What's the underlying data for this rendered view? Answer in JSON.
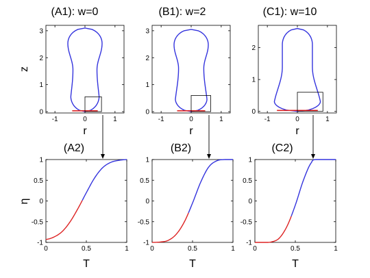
{
  "colors": {
    "blue": "#3333dd",
    "red": "#dd2222",
    "axis": "#000000",
    "box": "#000000"
  },
  "chart_data": [
    {
      "id": "A1",
      "type": "line",
      "title": "(A1): w=0",
      "xlabel": "r",
      "ylabel": "z",
      "xlim": [
        -1.3,
        1.3
      ],
      "ylim": [
        -0.05,
        3.2
      ],
      "xticks": [
        -1,
        0,
        1
      ],
      "yticks": [
        0,
        1,
        2,
        3
      ],
      "shape": {
        "half_width": 0.57,
        "bottom_half_width": 0.5,
        "height": 3.1,
        "waist_half_width": 0.4,
        "waist_z": 1.55,
        "bottom_round": 0.55,
        "top_round": 0.57
      },
      "inset_box": {
        "r": [
          0,
          0.55
        ],
        "z": [
          0,
          0.55
        ]
      },
      "callout": "(A2)"
    },
    {
      "id": "B1",
      "type": "line",
      "title": "(B1): w=2",
      "xlabel": "r",
      "ylabel": "",
      "xlim": [
        -1.3,
        1.3
      ],
      "ylim": [
        -0.05,
        3.2
      ],
      "xticks": [
        -1,
        0,
        1
      ],
      "yticks": [
        0,
        1,
        2,
        3
      ],
      "shape": {
        "half_width": 0.57,
        "bottom_half_width": 0.55,
        "height": 3.05,
        "waist_half_width": 0.42,
        "waist_z": 1.6,
        "bottom_round": 0.45,
        "top_round": 0.57
      },
      "inset_box": {
        "r": [
          0,
          0.65
        ],
        "z": [
          0,
          0.6
        ]
      },
      "callout": "(B2)"
    },
    {
      "id": "C1",
      "type": "line",
      "title": "(C1): w=10",
      "xlabel": "r",
      "ylabel": "",
      "xlim": [
        -1.3,
        1.3
      ],
      "ylim": [
        -0.05,
        2.7
      ],
      "xticks": [
        -1,
        0,
        1
      ],
      "yticks": [
        0,
        1,
        2
      ],
      "shape": {
        "half_width": 0.5,
        "bottom_half_width": 0.8,
        "height": 2.6,
        "waist_half_width": 0.5,
        "waist_z": 1.4,
        "bottom_round": 0.3,
        "top_round": 0.5
      },
      "inset_box": {
        "r": [
          0,
          0.85
        ],
        "z": [
          0,
          0.6
        ]
      },
      "callout": "(C2)"
    },
    {
      "id": "A2",
      "type": "line",
      "title": "",
      "xlabel": "T",
      "ylabel": "η",
      "xlim": [
        0,
        1
      ],
      "ylim": [
        -1,
        1
      ],
      "xticks": [
        0,
        0.5,
        1
      ],
      "yticks": [
        -1,
        -0.5,
        0,
        0.5,
        1
      ],
      "series": [
        {
          "x": [
            0,
            0.1,
            0.2,
            0.3,
            0.4,
            0.5,
            0.6,
            0.7,
            0.8,
            0.9,
            1.0
          ],
          "y": [
            -0.93,
            -0.87,
            -0.74,
            -0.5,
            -0.17,
            0.2,
            0.55,
            0.8,
            0.93,
            0.98,
            1.0
          ]
        }
      ]
    },
    {
      "id": "B2",
      "type": "line",
      "title": "",
      "xlabel": "T",
      "ylabel": "",
      "xlim": [
        0,
        1
      ],
      "ylim": [
        -1,
        1
      ],
      "xticks": [
        0,
        0.5,
        1
      ],
      "yticks": [
        -1,
        -0.5,
        0,
        0.5,
        1
      ],
      "series": [
        {
          "x": [
            0,
            0.1,
            0.2,
            0.3,
            0.4,
            0.5,
            0.6,
            0.7,
            0.8,
            0.9,
            1.0
          ],
          "y": [
            -1.0,
            -0.99,
            -0.95,
            -0.8,
            -0.5,
            -0.05,
            0.45,
            0.82,
            0.97,
            1.0,
            1.0
          ]
        }
      ]
    },
    {
      "id": "C2",
      "type": "line",
      "title": "",
      "xlabel": "T",
      "ylabel": "",
      "xlim": [
        0,
        1
      ],
      "ylim": [
        -1,
        1
      ],
      "xticks": [
        0,
        0.5,
        1
      ],
      "yticks": [
        -1,
        -0.5,
        0,
        0.5,
        1
      ],
      "series": [
        {
          "x": [
            0,
            0.1,
            0.2,
            0.3,
            0.4,
            0.5,
            0.6,
            0.7,
            0.75,
            0.8,
            1.0
          ],
          "y": [
            -1.0,
            -1.0,
            -0.99,
            -0.9,
            -0.6,
            -0.1,
            0.5,
            0.93,
            1.0,
            1.0,
            1.0
          ]
        }
      ]
    }
  ]
}
